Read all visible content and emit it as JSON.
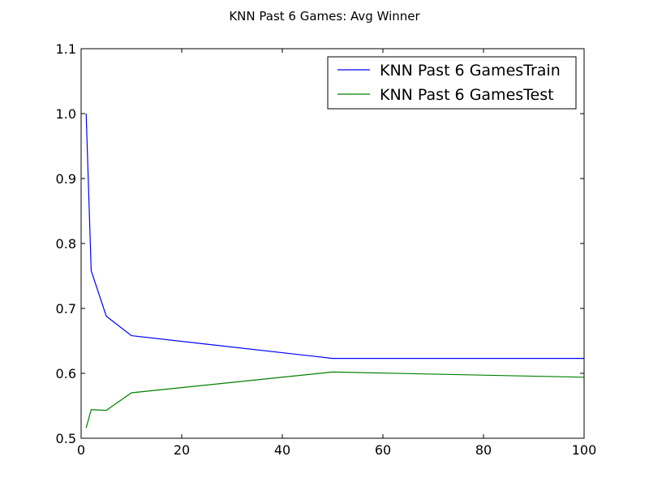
{
  "chart_data": {
    "type": "line",
    "title": "KNN Past 6 Games: Avg Winner",
    "xlabel": "",
    "ylabel": "",
    "xlim": [
      0,
      100
    ],
    "ylim": [
      0.5,
      1.1
    ],
    "x_ticks": [
      0,
      20,
      40,
      60,
      80,
      100
    ],
    "y_ticks": [
      0.5,
      0.6,
      0.7,
      0.8,
      0.9,
      1.0,
      1.1
    ],
    "x_tick_labels": [
      "0",
      "20",
      "40",
      "60",
      "80",
      "100"
    ],
    "y_tick_labels": [
      "0.5",
      "0.6",
      "0.7",
      "0.8",
      "0.9",
      "1.0",
      "1.1"
    ],
    "grid": false,
    "legend_position": "top-right",
    "series": [
      {
        "name": "KNN Past 6 GamesTrain",
        "color": "#0000ff",
        "x": [
          1,
          2,
          5,
          10,
          50,
          100
        ],
        "y": [
          1.0,
          0.758,
          0.688,
          0.658,
          0.623,
          0.623
        ]
      },
      {
        "name": "KNN Past 6 GamesTest",
        "color": "#008000",
        "x": [
          1,
          2,
          5,
          10,
          50,
          100
        ],
        "y": [
          0.516,
          0.544,
          0.543,
          0.57,
          0.602,
          0.594
        ]
      }
    ]
  }
}
